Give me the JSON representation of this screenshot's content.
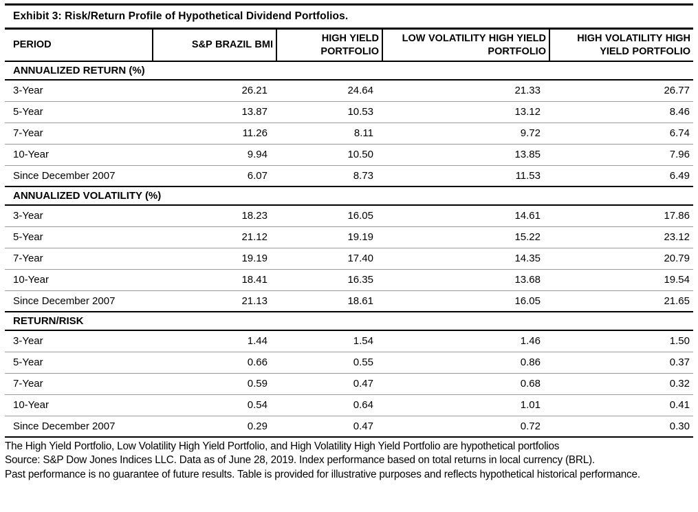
{
  "title": "Exhibit 3: Risk/Return Profile of Hypothetical Dividend Portfolios.",
  "table": {
    "columns": [
      "PERIOD",
      "S&P BRAZIL BMI",
      "HIGH YIELD PORTFOLIO",
      "LOW VOLATILITY HIGH YIELD PORTFOLIO",
      "HIGH VOLATILITY HIGH YIELD PORTFOLIO"
    ],
    "sections": [
      {
        "label": "ANNUALIZED RETURN (%)",
        "rows": [
          {
            "period": "3-Year",
            "values": [
              "26.21",
              "24.64",
              "21.33",
              "26.77"
            ]
          },
          {
            "period": "5-Year",
            "values": [
              "13.87",
              "10.53",
              "13.12",
              "8.46"
            ]
          },
          {
            "period": "7-Year",
            "values": [
              "11.26",
              "8.11",
              "9.72",
              "6.74"
            ]
          },
          {
            "period": "10-Year",
            "values": [
              "9.94",
              "10.50",
              "13.85",
              "7.96"
            ]
          },
          {
            "period": "Since December 2007",
            "values": [
              "6.07",
              "8.73",
              "11.53",
              "6.49"
            ]
          }
        ]
      },
      {
        "label": "ANNUALIZED VOLATILITY (%)",
        "rows": [
          {
            "period": "3-Year",
            "values": [
              "18.23",
              "16.05",
              "14.61",
              "17.86"
            ]
          },
          {
            "period": "5-Year",
            "values": [
              "21.12",
              "19.19",
              "15.22",
              "23.12"
            ]
          },
          {
            "period": "7-Year",
            "values": [
              "19.19",
              "17.40",
              "14.35",
              "20.79"
            ]
          },
          {
            "period": "10-Year",
            "values": [
              "18.41",
              "16.35",
              "13.68",
              "19.54"
            ]
          },
          {
            "period": "Since December 2007",
            "values": [
              "21.13",
              "18.61",
              "16.05",
              "21.65"
            ]
          }
        ]
      },
      {
        "label": "RETURN/RISK",
        "rows": [
          {
            "period": "3-Year",
            "values": [
              "1.44",
              "1.54",
              "1.46",
              "1.50"
            ]
          },
          {
            "period": "5-Year",
            "values": [
              "0.66",
              "0.55",
              "0.86",
              "0.37"
            ]
          },
          {
            "period": "7-Year",
            "values": [
              "0.59",
              "0.47",
              "0.68",
              "0.32"
            ]
          },
          {
            "period": "10-Year",
            "values": [
              "0.54",
              "0.64",
              "1.01",
              "0.41"
            ]
          },
          {
            "period": "Since December 2007",
            "values": [
              "0.29",
              "0.47",
              "0.72",
              "0.30"
            ]
          }
        ]
      }
    ]
  },
  "footnotes": [
    "The High Yield Portfolio, Low Volatility High Yield Portfolio, and High Volatility High Yield Portfolio are hypothetical portfolios",
    "Source: S&P Dow Jones Indices LLC. Data as of June 28, 2019. Index performance based on total returns in local currency (BRL).",
    "Past performance is no guarantee of future results. Table is provided for illustrative purposes and reflects hypothetical historical performance."
  ],
  "colors": {
    "border_strong": "#000000",
    "row_divider": "#9b9b9b",
    "text": "#000000",
    "background": "#ffffff"
  }
}
